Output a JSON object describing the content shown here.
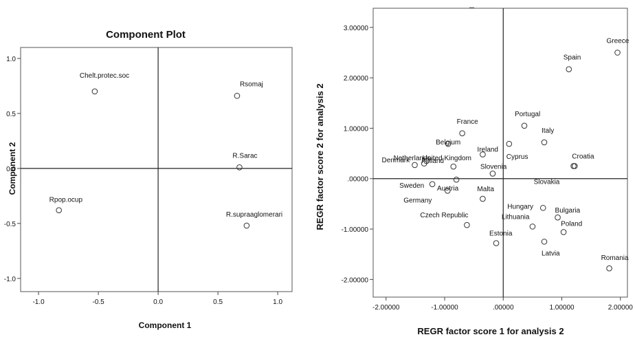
{
  "chart_data": [
    {
      "type": "scatter",
      "title": "Component Plot",
      "xlabel": "Component 1",
      "ylabel": "Component 2",
      "xlim": [
        -1.15,
        1.12
      ],
      "ylim": [
        -1.12,
        1.1
      ],
      "xticks": [
        -1.0,
        -0.5,
        0.0,
        0.5,
        1.0
      ],
      "xtick_labels": [
        "-1.0",
        "-0.5",
        "0.0",
        "0.5",
        "1.0"
      ],
      "yticks": [
        1.0,
        0.5,
        0.0,
        -0.5,
        -1.0
      ],
      "ytick_labels": [
        "1.0",
        "0.5",
        "0.0",
        "-0.5",
        "-1.0"
      ],
      "reference_lines": {
        "x": 0,
        "y": 0
      },
      "points": [
        {
          "label": "Chelt.protec.soc",
          "x": -0.53,
          "y": 0.7
        },
        {
          "label": "Rsomaj",
          "x": 0.66,
          "y": 0.66
        },
        {
          "label": "R.Sarac",
          "x": 0.68,
          "y": 0.01
        },
        {
          "label": "Rpop.ocup",
          "x": -0.83,
          "y": -0.38
        },
        {
          "label": "R.supraaglomerari",
          "x": 0.74,
          "y": -0.52
        }
      ]
    },
    {
      "type": "scatter",
      "title": "",
      "xlabel": "REGR factor score   1 for analysis 2",
      "ylabel": "REGR factor score   2 for analysis 2",
      "xlim": [
        -2.22,
        2.12
      ],
      "ylim": [
        -2.35,
        3.38
      ],
      "xticks": [
        -2,
        -1,
        0,
        1,
        2
      ],
      "xtick_labels": [
        "-2.00000",
        "-1.00000",
        ".00000",
        "1.00000",
        "2.00000"
      ],
      "yticks": [
        3,
        2,
        1,
        0,
        -1,
        -2
      ],
      "ytick_labels": [
        "3.00000",
        "2.00000",
        "1.00000",
        ".00000",
        "-1.00000",
        "-2.00000"
      ],
      "reference_lines": {
        "x": 0,
        "y": 0
      },
      "points": [
        {
          "label": "Greece",
          "x": 1.95,
          "y": 2.5
        },
        {
          "label": "Spain",
          "x": 1.12,
          "y": 2.17
        },
        {
          "label": "Portugal",
          "x": 0.36,
          "y": 1.05
        },
        {
          "label": "France",
          "x": -0.7,
          "y": 0.9
        },
        {
          "label": "Italy",
          "x": 0.7,
          "y": 0.72
        },
        {
          "label": "Belgium",
          "x": -0.94,
          "y": 0.69
        },
        {
          "label": "Ireland",
          "x": -0.35,
          "y": 0.48
        },
        {
          "label": "Cyprus",
          "x": 0.1,
          "y": 0.69
        },
        {
          "label": "Denmark",
          "x": -1.51,
          "y": 0.27
        },
        {
          "label": "Finland",
          "x": -1.35,
          "y": 0.3
        },
        {
          "label": "Croatia",
          "x": 1.22,
          "y": 0.25
        },
        {
          "label": "Slovenia",
          "x": -0.18,
          "y": 0.1
        },
        {
          "label": "United Kingdom",
          "x": -0.85,
          "y": 0.24
        },
        {
          "label": "Netherlands",
          "x": -1.31,
          "y": 0.35
        },
        {
          "label": "Sweden",
          "x": -1.21,
          "y": -0.11
        },
        {
          "label": "Malta",
          "x": -0.35,
          "y": -0.4
        },
        {
          "label": "Germany",
          "x": -0.95,
          "y": -0.24
        },
        {
          "label": "Austria",
          "x": -0.8,
          "y": -0.02
        },
        {
          "label": "Slovakia",
          "x": 1.2,
          "y": 0.25
        },
        {
          "label": "Hungary",
          "x": 0.68,
          "y": -0.58
        },
        {
          "label": "Bulgaria",
          "x": 0.93,
          "y": -0.77
        },
        {
          "label": "Czech Republic",
          "x": -0.62,
          "y": -0.92
        },
        {
          "label": "Lithuania",
          "x": 0.5,
          "y": -0.95
        },
        {
          "label": "Poland",
          "x": 1.03,
          "y": -1.06
        },
        {
          "label": "Estonia",
          "x": -0.12,
          "y": -1.28
        },
        {
          "label": "Latvia",
          "x": 0.7,
          "y": -1.25
        },
        {
          "label": "Romania",
          "x": 1.81,
          "y": -1.78
        }
      ]
    }
  ]
}
